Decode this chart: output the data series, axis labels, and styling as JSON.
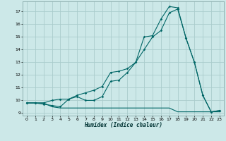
{
  "title": "",
  "xlabel": "Humidex (Indice chaleur)",
  "bg_color": "#cce8e8",
  "grid_color": "#aacccc",
  "line_color": "#006666",
  "xlim": [
    -0.5,
    23.5
  ],
  "ylim": [
    8.8,
    17.8
  ],
  "yticks": [
    9,
    10,
    11,
    12,
    13,
    14,
    15,
    16,
    17
  ],
  "xticks": [
    0,
    1,
    2,
    3,
    4,
    5,
    6,
    7,
    8,
    9,
    10,
    11,
    12,
    13,
    14,
    15,
    16,
    17,
    18,
    19,
    20,
    21,
    22,
    23
  ],
  "line1_x": [
    0,
    1,
    2,
    3,
    4,
    5,
    6,
    7,
    8,
    9,
    10,
    11,
    12,
    13,
    14,
    15,
    16,
    17,
    18,
    19,
    20,
    21,
    22,
    23
  ],
  "line1_y": [
    9.8,
    9.8,
    9.8,
    9.5,
    9.4,
    9.4,
    9.4,
    9.4,
    9.4,
    9.4,
    9.4,
    9.4,
    9.4,
    9.4,
    9.4,
    9.4,
    9.4,
    9.4,
    9.1,
    9.1,
    9.1,
    9.1,
    9.1,
    9.1
  ],
  "line2_x": [
    0,
    1,
    2,
    3,
    4,
    5,
    6,
    7,
    8,
    9,
    10,
    11,
    12,
    13,
    14,
    15,
    16,
    17,
    18,
    19,
    20,
    21,
    22,
    23
  ],
  "line2_y": [
    9.8,
    9.8,
    9.8,
    10.0,
    10.1,
    10.1,
    10.3,
    10.0,
    10.0,
    10.3,
    11.5,
    11.6,
    12.2,
    13.0,
    15.0,
    15.1,
    16.4,
    17.4,
    17.3,
    14.9,
    13.0,
    10.4,
    9.1,
    9.2
  ],
  "line3_x": [
    0,
    1,
    2,
    3,
    4,
    5,
    6,
    7,
    8,
    9,
    10,
    11,
    12,
    13,
    14,
    15,
    16,
    17,
    18,
    19,
    20,
    21,
    22,
    23
  ],
  "line3_y": [
    9.8,
    9.8,
    9.7,
    9.6,
    9.5,
    10.1,
    10.4,
    10.6,
    10.8,
    11.1,
    12.2,
    12.3,
    12.5,
    13.0,
    14.0,
    15.0,
    15.5,
    16.9,
    17.2,
    14.9,
    13.0,
    10.4,
    9.1,
    9.2
  ],
  "xlabel_fontsize": 5.5,
  "tick_fontsize": 4.5
}
